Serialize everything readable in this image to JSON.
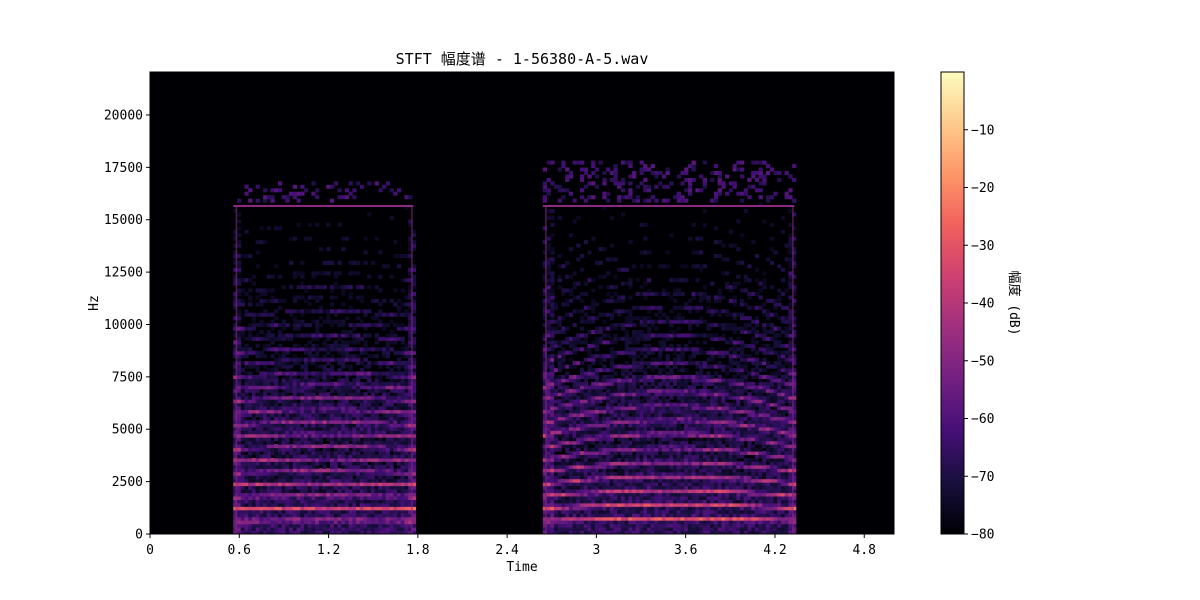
{
  "chart_data": {
    "type": "heatmap",
    "title": "STFT 幅度谱 - 1-56380-A-5.wav",
    "xlabel": "Time",
    "ylabel": "Hz",
    "xlim": [
      0,
      5.0
    ],
    "ylim": [
      0,
      22050
    ],
    "x_ticks": [
      0,
      0.6,
      1.2,
      1.8,
      2.4,
      3,
      3.6,
      4.2,
      4.8
    ],
    "x_tick_labels": [
      "0",
      "0.6",
      "1.2",
      "1.8",
      "2.4",
      "3",
      "3.6",
      "4.2",
      "4.8"
    ],
    "y_ticks": [
      0,
      2500,
      5000,
      7500,
      10000,
      12500,
      15000,
      17500,
      20000
    ],
    "y_tick_labels": [
      "0",
      "2500",
      "5000",
      "7500",
      "10000",
      "12500",
      "15000",
      "17500",
      "20000"
    ],
    "colorbar": {
      "label": "幅度 (dB)",
      "range": [
        -80,
        0
      ],
      "ticks": [
        -10,
        -20,
        -30,
        -40,
        -50,
        -60,
        -70,
        -80
      ],
      "tick_labels": [
        "−10",
        "−20",
        "−30",
        "−40",
        "−50",
        "−60",
        "−70",
        "−80"
      ],
      "colormap": "magma",
      "colors": [
        "#000004",
        "#180f3d",
        "#440f76",
        "#721f81",
        "#9e2f7f",
        "#cd4071",
        "#f1605d",
        "#fd9668",
        "#feca8d",
        "#fcfdbf"
      ]
    },
    "segments": [
      {
        "start": 0.56,
        "end": 1.77,
        "ceiling_hz": 16800,
        "cutoff_hz": 15700,
        "f0_hz": 570,
        "contour": "flat"
      },
      {
        "start": 2.64,
        "end": 4.33,
        "ceiling_hz": 17800,
        "cutoff_hz": 15700,
        "f0_hz": 580,
        "contour": "arched"
      }
    ],
    "background_db": -80
  }
}
